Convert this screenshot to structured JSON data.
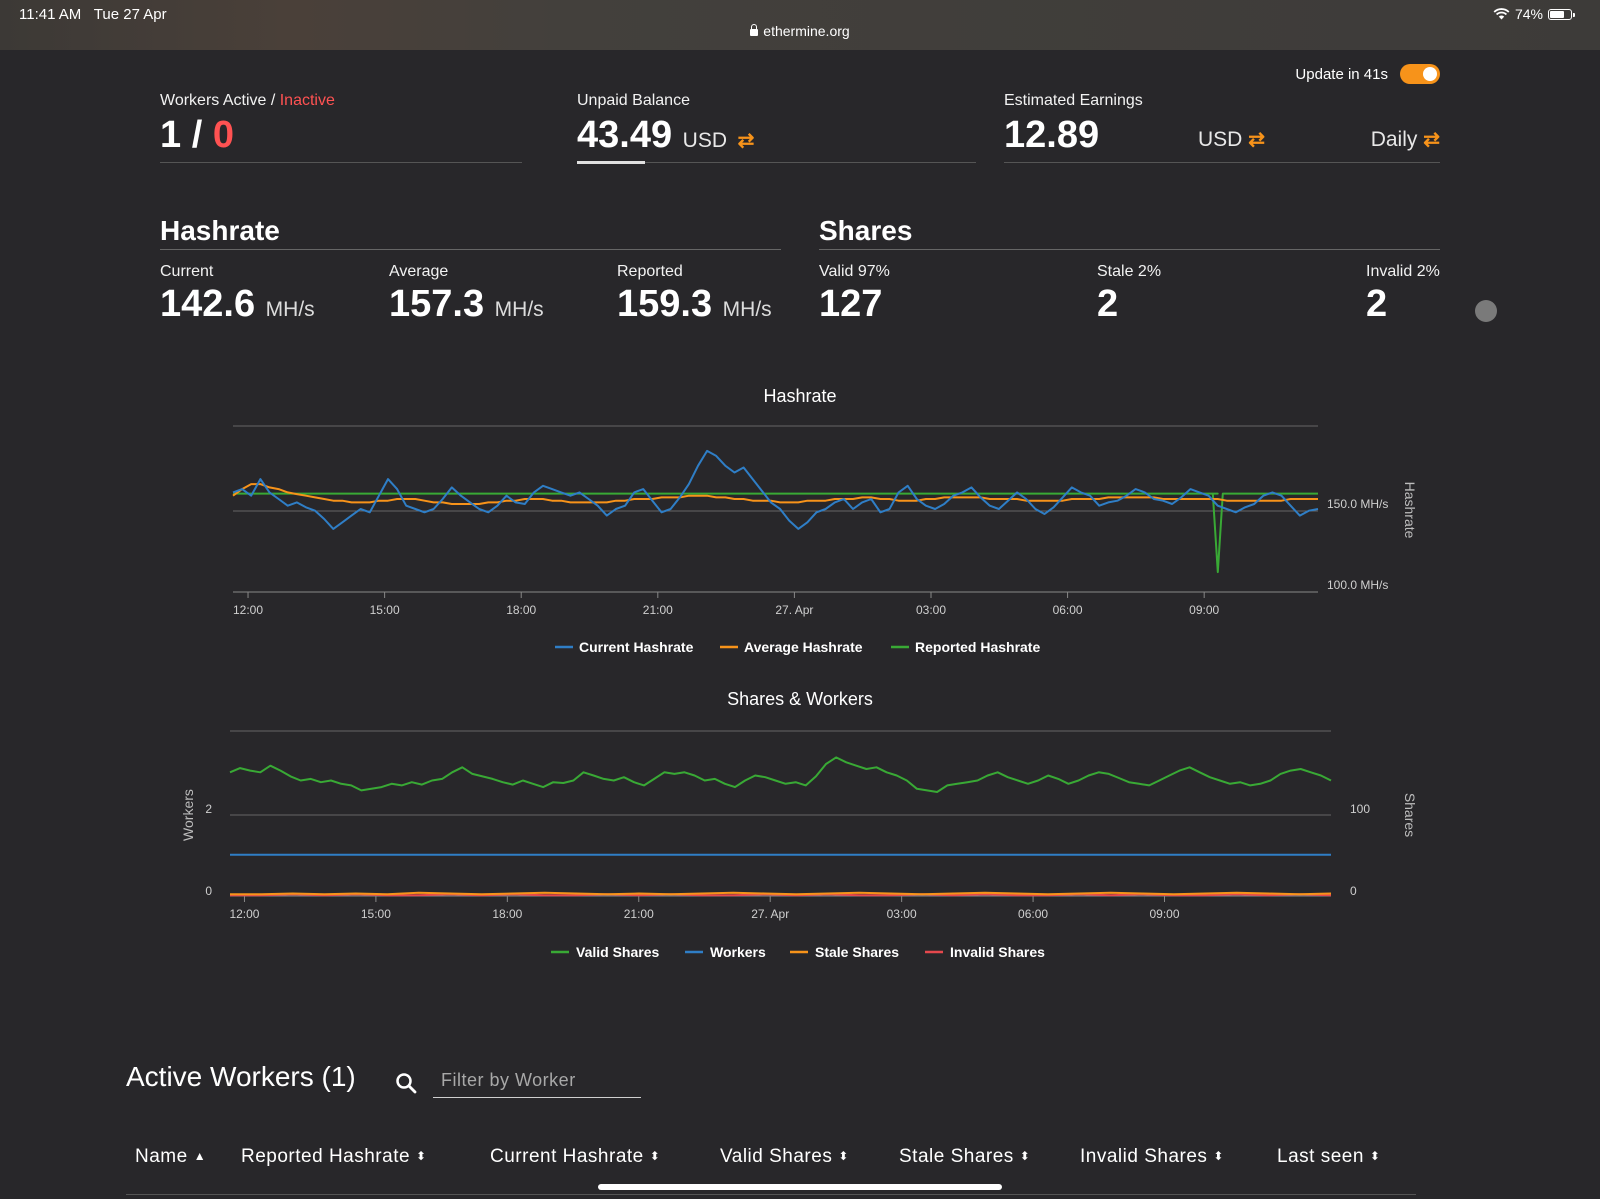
{
  "status_bar": {
    "time": "11:41 AM",
    "date": "Tue 27 Apr",
    "url": "ethermine.org",
    "battery": "74%"
  },
  "update": {
    "label": "Update in 41s",
    "enabled": true
  },
  "workers": {
    "label_active": "Workers Active / ",
    "label_inactive": "Inactive",
    "active": "1 / ",
    "inactive": "0"
  },
  "unpaid": {
    "label": "Unpaid Balance",
    "value": "43.49",
    "unit": "USD",
    "progress": 0.17
  },
  "earnings": {
    "label": "Estimated Earnings",
    "value": "12.89",
    "unit": "USD",
    "period": "Daily"
  },
  "hashrate": {
    "title": "Hashrate",
    "current": {
      "label": "Current",
      "value": "142.6",
      "unit": "MH/s"
    },
    "average": {
      "label": "Average",
      "value": "157.3",
      "unit": "MH/s"
    },
    "reported": {
      "label": "Reported",
      "value": "159.3",
      "unit": "MH/s"
    }
  },
  "shares": {
    "title": "Shares",
    "valid": {
      "label": "Valid 97%",
      "value": "127"
    },
    "stale": {
      "label": "Stale 2%",
      "value": "2"
    },
    "invalid": {
      "label": "Invalid 2%",
      "value": "2"
    }
  },
  "colors": {
    "blue": "#2f7ec6",
    "orange": "#f7931a",
    "green": "#39a935",
    "red": "#e5484d",
    "accent": "#f7931a"
  },
  "chart_data": [
    {
      "type": "line",
      "title": "Hashrate",
      "ylabel": "Hashrate",
      "y_ticks": [
        "150.0 MH/s",
        "100.0 MH/s"
      ],
      "ylim": [
        100,
        200
      ],
      "x_ticks": [
        "12:00",
        "15:00",
        "18:00",
        "21:00",
        "27. Apr",
        "03:00",
        "06:00",
        "09:00"
      ],
      "x_tick_hours": [
        0,
        3,
        6,
        9,
        12,
        15,
        18,
        21
      ],
      "x_range_hours": [
        -0.33,
        23.5
      ],
      "legend_position": "bottom",
      "series": [
        {
          "name": "Current Hashrate",
          "color": "#2f7ec6",
          "values": [
            160,
            162,
            158,
            168,
            160,
            156,
            152,
            154,
            151,
            149,
            144,
            138,
            142,
            146,
            150,
            148,
            158,
            168,
            162,
            152,
            150,
            148,
            150,
            156,
            163,
            158,
            154,
            150,
            148,
            152,
            158,
            154,
            153,
            160,
            164,
            162,
            160,
            158,
            160,
            156,
            152,
            146,
            150,
            152,
            160,
            162,
            155,
            148,
            150,
            157,
            165,
            176,
            185,
            182,
            176,
            172,
            175,
            168,
            161,
            154,
            150,
            143,
            138,
            142,
            148,
            150,
            154,
            156,
            150,
            154,
            156,
            148,
            150,
            160,
            164,
            156,
            152,
            150,
            153,
            158,
            160,
            163,
            157,
            152,
            150,
            155,
            160,
            156,
            150,
            147,
            151,
            157,
            163,
            160,
            158,
            152,
            154,
            155,
            158,
            162,
            160,
            156,
            155,
            153,
            157,
            162,
            160,
            158,
            152,
            150,
            148,
            151,
            153,
            158,
            160,
            158,
            152,
            146,
            149,
            150
          ]
        },
        {
          "name": "Average Hashrate",
          "color": "#f7931a",
          "values": [
            158,
            162,
            165,
            165,
            163,
            162,
            160,
            159,
            158,
            157,
            156,
            155,
            155,
            154,
            154,
            154,
            155,
            155,
            156,
            156,
            156,
            155,
            154,
            154,
            153,
            153,
            153,
            153,
            154,
            154,
            155,
            155,
            156,
            156,
            156,
            155,
            155,
            154,
            154,
            154,
            154,
            154,
            155,
            155,
            156,
            156,
            156,
            157,
            157,
            157,
            158,
            158,
            158,
            157,
            157,
            156,
            156,
            155,
            155,
            155,
            154,
            154,
            154,
            155,
            155,
            155,
            156,
            156,
            156,
            157,
            157,
            156,
            156,
            155,
            155,
            155,
            156,
            156,
            157,
            157,
            157,
            157,
            157,
            156,
            156,
            156,
            156,
            155,
            155,
            155,
            155,
            155,
            156,
            156,
            156,
            156,
            157,
            157,
            157,
            157,
            157,
            157,
            156,
            156,
            156,
            156,
            156,
            156,
            156,
            155,
            155,
            155,
            155,
            155,
            155,
            155,
            156,
            156,
            156,
            156
          ]
        },
        {
          "name": "Reported Hashrate",
          "color": "#39a935",
          "values": [
            159.3,
            159.3,
            159.3,
            159.3,
            159.3,
            159.3,
            159.3,
            159.3,
            159.3,
            159.3,
            159.3,
            159.3,
            159.3,
            159.3,
            159.3,
            159.3,
            159.3,
            159.3,
            159.3,
            159.3,
            159.3,
            159.3,
            159.3,
            159.3,
            159.3,
            159.3,
            159.3,
            159.3,
            159.3,
            159.3,
            159.3,
            159.3,
            159.3,
            159.3,
            159.3,
            159.3,
            159.3,
            159.3,
            159.3,
            159.3,
            159.3,
            159.3,
            159.3,
            159.3,
            159.3,
            159.3,
            159.3,
            159.3,
            159.3,
            159.3,
            159.3,
            159.3,
            159.3,
            159.3,
            159.3,
            159.3,
            159.3,
            159.3,
            159.3,
            159.3,
            159.3,
            159.3,
            159.3,
            159.3,
            159.3,
            159.3,
            159.3,
            159.3,
            159.3,
            159.3,
            159.3,
            159.3,
            159.3,
            159.3,
            159.3,
            159.3,
            159.3,
            159.3,
            159.3,
            159.3,
            159.3,
            159.3,
            159.3,
            159.3,
            159.3,
            159.3,
            159.3,
            159.3,
            159.3,
            159.3,
            159.3,
            159.3,
            159.3,
            159.3,
            159.3,
            159.3,
            159.3,
            159.3,
            159.3,
            159.3,
            159.3,
            159.3,
            159.3,
            159.3,
            159.3,
            159.3,
            159.3,
            159.3,
            159.3,
            159.3,
            159.3,
            159.3,
            159.3,
            159.3,
            159.3,
            159.3,
            159.3,
            159.3,
            159.3,
            159.3
          ],
          "dip": {
            "hour": 21.3,
            "value": 112
          }
        }
      ]
    },
    {
      "type": "line",
      "title": "Shares & Workers",
      "ylabel_left": "Workers",
      "ylabel_right": "Shares",
      "y_left_ticks": [
        "2",
        "0"
      ],
      "y_right_ticks": [
        "100",
        "0"
      ],
      "ylim_shares": [
        0,
        200
      ],
      "ylim_workers": [
        0,
        4
      ],
      "x_ticks": [
        "12:00",
        "15:00",
        "18:00",
        "21:00",
        "27. Apr",
        "03:00",
        "06:00",
        "09:00"
      ],
      "x_tick_hours": [
        0,
        3,
        6,
        9,
        12,
        15,
        18,
        21
      ],
      "x_range_hours": [
        -0.33,
        24.8
      ],
      "legend_position": "bottom",
      "series": [
        {
          "name": "Valid Shares",
          "color": "#39a935",
          "values": [
            150,
            155,
            152,
            150,
            158,
            152,
            145,
            140,
            142,
            138,
            140,
            136,
            134,
            128,
            130,
            132,
            136,
            134,
            138,
            135,
            140,
            142,
            150,
            156,
            148,
            145,
            142,
            138,
            135,
            140,
            136,
            132,
            138,
            137,
            140,
            150,
            146,
            142,
            140,
            144,
            138,
            134,
            142,
            150,
            148,
            150,
            146,
            140,
            142,
            136,
            132,
            140,
            146,
            144,
            140,
            136,
            138,
            134,
            145,
            160,
            168,
            162,
            158,
            154,
            156,
            150,
            146,
            140,
            130,
            128,
            126,
            134,
            136,
            138,
            140,
            146,
            150,
            144,
            140,
            136,
            140,
            146,
            142,
            136,
            140,
            146,
            150,
            148,
            143,
            138,
            136,
            134,
            140,
            146,
            152,
            156,
            150,
            144,
            140,
            136,
            138,
            134,
            136,
            140,
            148,
            152,
            154,
            150,
            146,
            140
          ]
        },
        {
          "name": "Workers",
          "color": "#2f7ec6",
          "values": [
            1,
            1
          ]
        },
        {
          "name": "Stale Shares",
          "color": "#f7931a",
          "values": [
            2,
            2,
            3,
            2,
            3,
            2,
            4,
            3,
            2,
            3,
            4,
            3,
            2,
            3,
            2,
            3,
            4,
            3,
            2,
            3,
            4,
            3,
            2,
            3,
            4,
            3,
            2,
            3,
            4,
            3,
            2,
            3,
            4,
            3,
            2,
            3
          ]
        },
        {
          "name": "Invalid Shares",
          "color": "#e5484d",
          "values": [
            1,
            1,
            2,
            1,
            2,
            1,
            1,
            2,
            1,
            2,
            1,
            1,
            2,
            1,
            2,
            1,
            1,
            2,
            1,
            2,
            1,
            1,
            2,
            1,
            2,
            1,
            1,
            2,
            1,
            2,
            1,
            1,
            2,
            1,
            2,
            1
          ]
        }
      ]
    }
  ],
  "active_workers": {
    "title": "Active Workers (1)",
    "filter_placeholder": "Filter by Worker",
    "columns": [
      "Name",
      "Reported Hashrate",
      "Current Hashrate",
      "Valid Shares",
      "Stale Shares",
      "Invalid Shares",
      "Last seen"
    ]
  }
}
